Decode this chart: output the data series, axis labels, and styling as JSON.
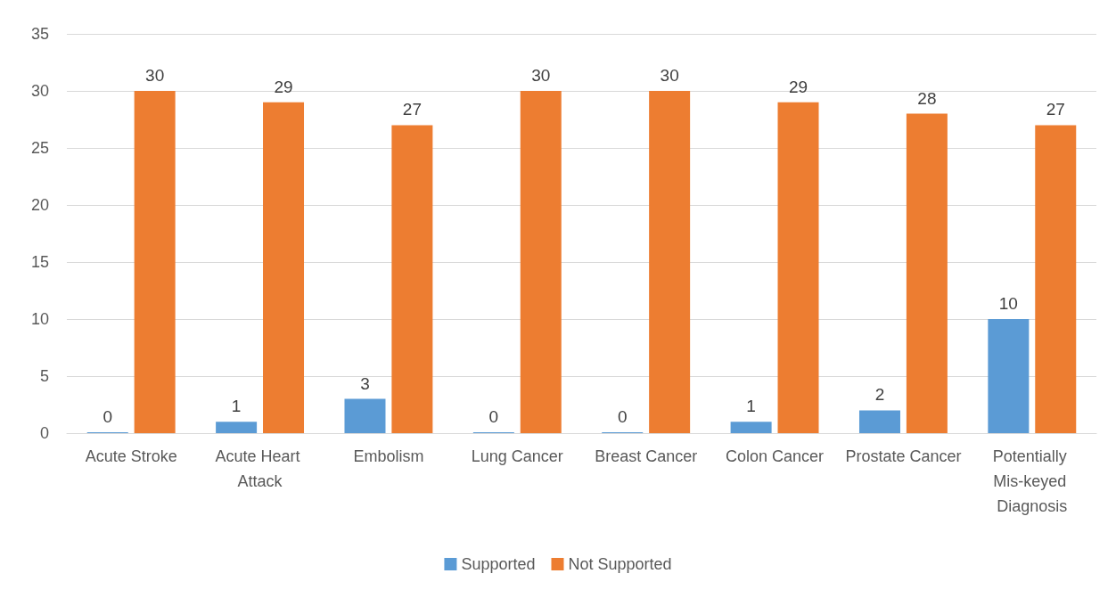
{
  "chart_data": {
    "type": "bar",
    "categories": [
      "Acute Stroke",
      "Acute Heart Attack",
      "Embolism",
      "Lung Cancer",
      "Breast Cancer",
      "Colon Cancer",
      "Prostate Cancer",
      "Potentially Mis-keyed Diagnosis"
    ],
    "series": [
      {
        "name": "Supported",
        "color": "#5b9bd5",
        "values": [
          0,
          1,
          3,
          0,
          0,
          1,
          2,
          10
        ]
      },
      {
        "name": "Not Supported",
        "color": "#ed7d31",
        "values": [
          30,
          29,
          27,
          30,
          30,
          29,
          28,
          27
        ]
      }
    ],
    "ylim": [
      0,
      35
    ],
    "yticks": [
      0,
      5,
      10,
      15,
      20,
      25,
      30,
      35
    ],
    "grid": "y",
    "legend": "bottom",
    "data_labels": true
  }
}
